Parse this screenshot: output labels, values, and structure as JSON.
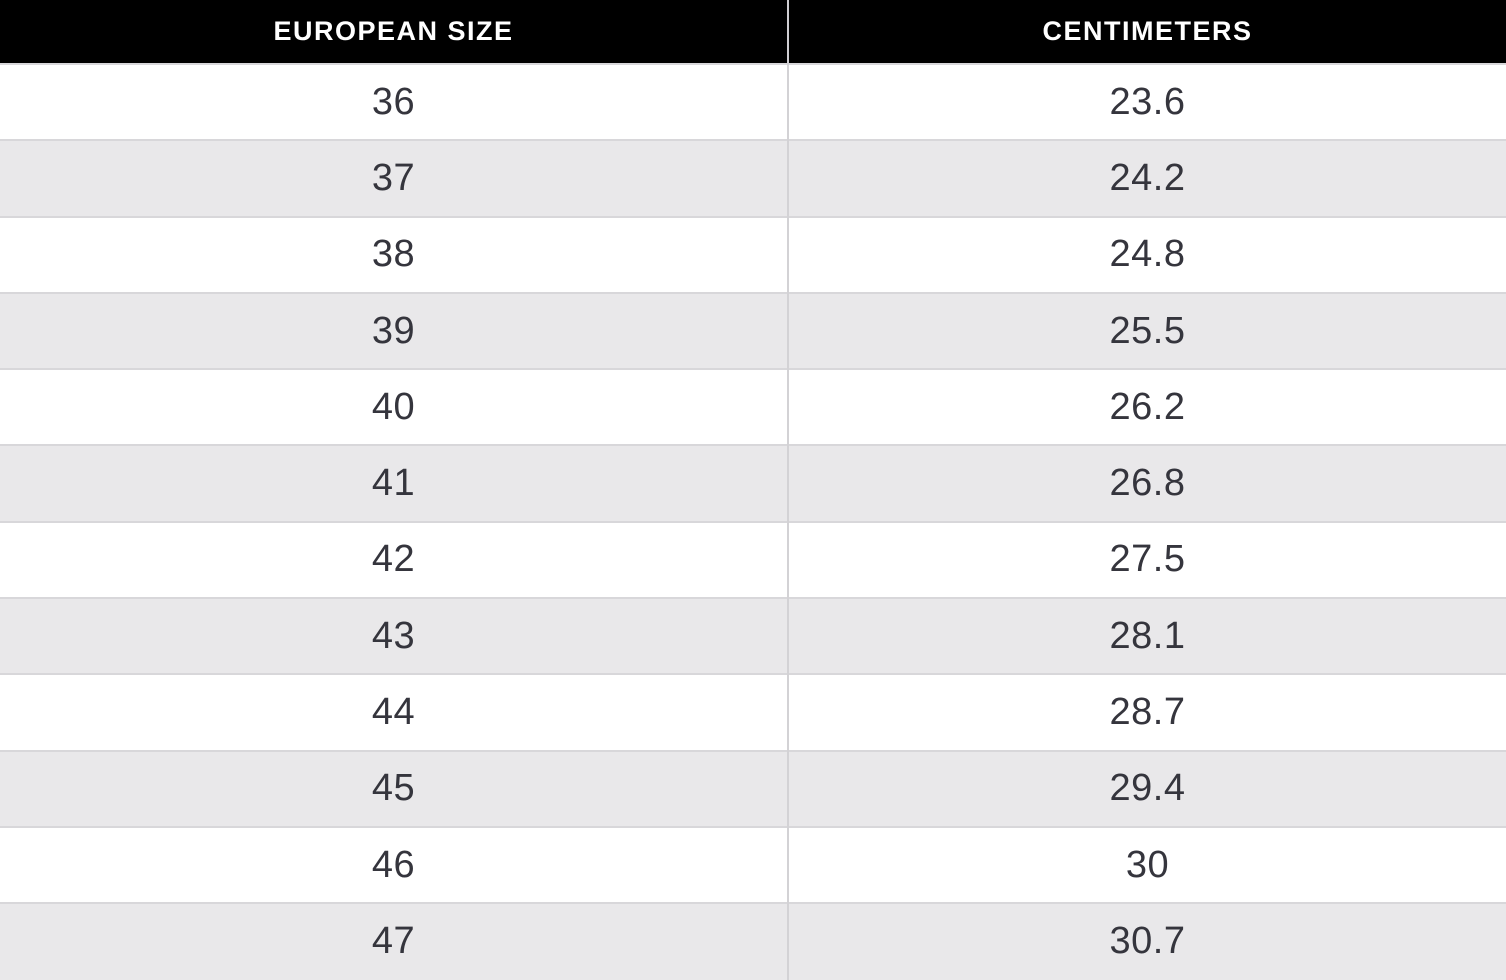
{
  "table": {
    "columns": [
      "EUROPEAN SIZE",
      "CENTIMETERS"
    ],
    "rows": [
      {
        "eu": "36",
        "cm": "23.6"
      },
      {
        "eu": "37",
        "cm": "24.2"
      },
      {
        "eu": "38",
        "cm": "24.8"
      },
      {
        "eu": "39",
        "cm": "25.5"
      },
      {
        "eu": "40",
        "cm": "26.2"
      },
      {
        "eu": "41",
        "cm": "26.8"
      },
      {
        "eu": "42",
        "cm": "27.5"
      },
      {
        "eu": "43",
        "cm": "28.1"
      },
      {
        "eu": "44",
        "cm": "28.7"
      },
      {
        "eu": "45",
        "cm": "29.4"
      },
      {
        "eu": "46",
        "cm": "30"
      },
      {
        "eu": "47",
        "cm": "30.7"
      }
    ]
  },
  "chart_data": {
    "type": "table",
    "columns": [
      "EUROPEAN SIZE",
      "CENTIMETERS"
    ],
    "rows": [
      [
        36,
        23.6
      ],
      [
        37,
        24.2
      ],
      [
        38,
        24.8
      ],
      [
        39,
        25.5
      ],
      [
        40,
        26.2
      ],
      [
        41,
        26.8
      ],
      [
        42,
        27.5
      ],
      [
        43,
        28.1
      ],
      [
        44,
        28.7
      ],
      [
        45,
        29.4
      ],
      [
        46,
        30
      ],
      [
        47,
        30.7
      ]
    ],
    "layout": {
      "header_position": "top",
      "alternating_row_shading": true,
      "first_shaded_row_index": 1,
      "last_row_clipped": true
    }
  },
  "colors": {
    "header_bg": "#000000",
    "header_text": "#ffffff",
    "row_bg": "#ffffff",
    "row_alt_bg": "#e9e8ea",
    "grid_line": "#d8d7da",
    "body_text": "#35353d"
  }
}
